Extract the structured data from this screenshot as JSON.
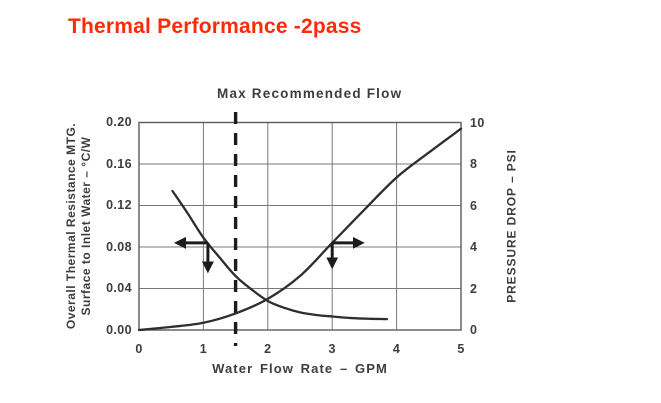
{
  "title": "Thermal Performance -2pass",
  "colors": {
    "title": "#FF2B06",
    "curve": "#2e2e2e",
    "grid": "#7a7a7a",
    "border": "#5a5a5a",
    "ink": "#1c1c1c",
    "label": "#3d3d3d"
  },
  "chart_data": {
    "type": "line",
    "x_axis": {
      "label": "Water Flow Rate – GPM",
      "ticks": [
        0,
        1,
        2,
        3,
        4,
        5
      ],
      "range": [
        0,
        5
      ]
    },
    "y_left": {
      "label_line1": "Overall Thermal Resistance MTG.",
      "label_line2": "Surface to Inlet Water – °C/W",
      "ticks": [
        "0.20",
        "0.16",
        "0.12",
        "0.08",
        "0.04",
        "0.00"
      ],
      "range": [
        0,
        0.2
      ]
    },
    "y_right": {
      "label": "PRESSURE DROP – PSI",
      "ticks": [
        "10",
        "8",
        "6",
        "4",
        "2",
        "0"
      ],
      "range": [
        0,
        10
      ]
    },
    "annotation": {
      "label": "Max Recommended Flow",
      "x": 1.5
    },
    "grid": true,
    "legend": "none",
    "series": [
      {
        "name": "thermal_resistance",
        "axis": "left",
        "points": [
          [
            0.52,
            0.134
          ],
          [
            0.75,
            0.113
          ],
          [
            1.0,
            0.089
          ],
          [
            1.25,
            0.07
          ],
          [
            1.5,
            0.052
          ],
          [
            1.75,
            0.039
          ],
          [
            2.0,
            0.028
          ],
          [
            2.25,
            0.0215
          ],
          [
            2.5,
            0.017
          ],
          [
            2.75,
            0.0145
          ],
          [
            3.0,
            0.013
          ],
          [
            3.3,
            0.0115
          ],
          [
            3.6,
            0.0108
          ],
          [
            3.85,
            0.0105
          ]
        ]
      },
      {
        "name": "pressure_drop",
        "axis": "right",
        "points": [
          [
            0,
            0.0
          ],
          [
            0.5,
            0.15
          ],
          [
            1.0,
            0.35
          ],
          [
            1.5,
            0.8
          ],
          [
            2.0,
            1.5
          ],
          [
            2.5,
            2.6
          ],
          [
            3.0,
            4.2
          ],
          [
            3.5,
            5.8
          ],
          [
            4.0,
            7.35
          ],
          [
            4.5,
            8.55
          ],
          [
            5.0,
            9.7
          ]
        ]
      }
    ],
    "arrows": [
      {
        "series": "thermal_resistance",
        "axis": "left",
        "direction": "left",
        "corner": [
          1.07,
          0.084
        ],
        "horiz_to": 0.6,
        "vert_to": 0.058
      },
      {
        "series": "pressure_drop",
        "axis": "right",
        "direction": "right",
        "corner": [
          3.0,
          4.2
        ],
        "horiz_to": 3.45,
        "vert_to": 3.1
      }
    ]
  }
}
